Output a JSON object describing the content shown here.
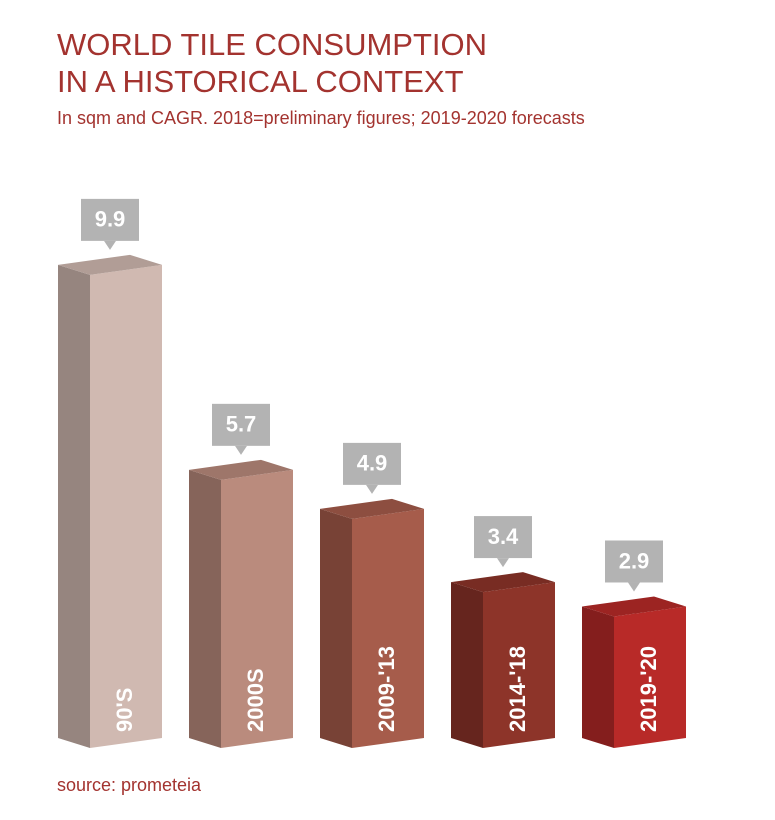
{
  "chart_data": {
    "type": "bar3d",
    "title": [
      "WORLD TILE CONSUMPTION",
      "IN A HISTORICAL CONTEXT"
    ],
    "subtitle": "In sqm and CAGR. 2018=preliminary figures; 2019-2020 forecasts",
    "categories": [
      "90'S",
      "2000S",
      "2009-'13",
      "2014-'18",
      "2019-'20"
    ],
    "values": [
      9.9,
      5.7,
      4.9,
      3.4,
      2.9
    ],
    "colors": [
      "#d0b9b1",
      "#ba8b7d",
      "#a65c4b",
      "#8d3429",
      "#b82a28"
    ],
    "source": "source: prometeia"
  }
}
